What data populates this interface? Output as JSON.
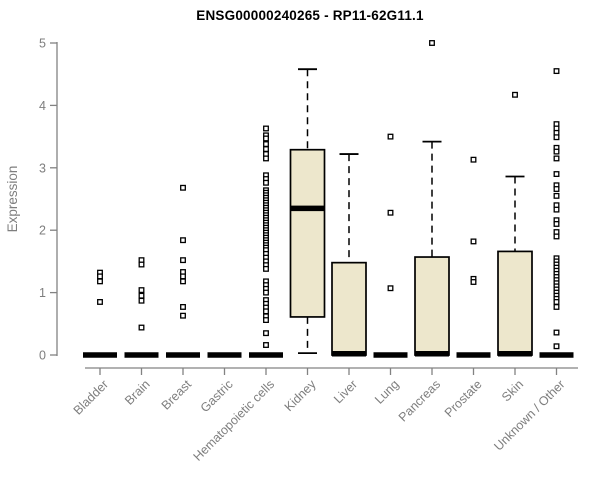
{
  "colors": {
    "background": "#FFFFFF",
    "box_fill": "#EDE7CC",
    "box_stroke": "#000000",
    "median": "#000000",
    "outlier": "#000000",
    "axis": "#828282",
    "tick_label": "#7E7E7E",
    "title": "#000000"
  },
  "chart_data": {
    "type": "boxplot",
    "title": "ENSG00000240265 - RP11-62G11.1",
    "xlabel": "",
    "ylabel": "Expression",
    "ylim": [
      0,
      5
    ],
    "yticks": [
      0,
      1,
      2,
      3,
      4,
      5
    ],
    "grid": "off",
    "legend": "none",
    "categories": [
      "Bladder",
      "Brain",
      "Breast",
      "Gastric",
      "Hematopoietic cells",
      "Kidney",
      "Liver",
      "Lung",
      "Pancreas",
      "Prostate",
      "Skin",
      "Unknown / Other"
    ],
    "boxes": [
      {
        "category": "Bladder",
        "collapsed": true,
        "median": 0,
        "q1": 0,
        "q3": 0,
        "whisker_low": 0,
        "whisker_high": 0,
        "outliers": [
          1.32,
          1.26,
          1.18,
          0.85
        ]
      },
      {
        "category": "Brain",
        "collapsed": true,
        "median": 0,
        "q1": 0,
        "q3": 0,
        "whisker_low": 0,
        "whisker_high": 0,
        "outliers": [
          1.52,
          1.45,
          1.04,
          0.95,
          0.87,
          0.44
        ]
      },
      {
        "category": "Breast",
        "collapsed": true,
        "median": 0,
        "q1": 0,
        "q3": 0,
        "whisker_low": 0,
        "whisker_high": 0,
        "outliers": [
          2.68,
          1.84,
          1.52,
          1.33,
          1.26,
          1.18,
          0.77,
          0.63
        ]
      },
      {
        "category": "Gastric",
        "collapsed": true,
        "median": 0,
        "q1": 0,
        "q3": 0,
        "whisker_low": 0,
        "whisker_high": 0,
        "outliers": []
      },
      {
        "category": "Hematopoietic cells",
        "collapsed": true,
        "median": 0,
        "q1": 0,
        "q3": 0,
        "whisker_low": 0,
        "whisker_high": 0,
        "outliers": [
          3.63,
          3.52,
          3.47,
          3.38,
          3.3,
          3.22,
          3.15,
          2.88,
          2.82,
          2.76,
          2.64,
          2.6,
          2.56,
          2.52,
          2.48,
          2.44,
          2.4,
          2.36,
          2.32,
          2.28,
          2.24,
          2.2,
          2.16,
          2.12,
          2.08,
          2.04,
          2.0,
          1.96,
          1.92,
          1.88,
          1.84,
          1.8,
          1.76,
          1.72,
          1.68,
          1.62,
          1.56,
          1.5,
          1.44,
          1.38,
          1.18,
          1.12,
          1.06,
          1.0,
          0.88,
          0.82,
          0.76,
          0.7,
          0.62,
          0.56,
          0.35,
          0.16
        ]
      },
      {
        "category": "Kidney",
        "collapsed": false,
        "median": 2.35,
        "q1": 0.61,
        "q3": 3.29,
        "whisker_low": 0.03,
        "whisker_high": 4.58,
        "outliers": []
      },
      {
        "category": "Liver",
        "collapsed": false,
        "median": 0.02,
        "q1": 0,
        "q3": 1.48,
        "whisker_low": 0,
        "whisker_high": 3.22,
        "outliers": []
      },
      {
        "category": "Lung",
        "collapsed": true,
        "median": 0,
        "q1": 0,
        "q3": 0,
        "whisker_low": 0,
        "whisker_high": 0,
        "outliers": [
          3.5,
          2.28,
          1.07
        ]
      },
      {
        "category": "Pancreas",
        "collapsed": false,
        "median": 0.02,
        "q1": 0,
        "q3": 1.57,
        "whisker_low": 0,
        "whisker_high": 3.42,
        "outliers": [
          5.0
        ]
      },
      {
        "category": "Prostate",
        "collapsed": true,
        "median": 0,
        "q1": 0,
        "q3": 0,
        "whisker_low": 0,
        "whisker_high": 0,
        "outliers": [
          3.13,
          1.82,
          1.22,
          1.17
        ]
      },
      {
        "category": "Skin",
        "collapsed": false,
        "median": 0.02,
        "q1": 0,
        "q3": 1.66,
        "whisker_low": 0,
        "whisker_high": 2.86,
        "outliers": [
          4.17
        ]
      },
      {
        "category": "Unknown / Other",
        "collapsed": true,
        "median": 0,
        "q1": 0,
        "q3": 0,
        "whisker_low": 0,
        "whisker_high": 0,
        "outliers": [
          4.55,
          3.7,
          3.63,
          3.56,
          3.49,
          3.32,
          3.26,
          3.15,
          2.9,
          2.72,
          2.66,
          2.55,
          2.4,
          2.33,
          2.16,
          2.1,
          1.97,
          1.9,
          1.55,
          1.5,
          1.45,
          1.4,
          1.35,
          1.3,
          1.25,
          1.2,
          1.15,
          1.1,
          1.05,
          1.0,
          0.95,
          0.9,
          0.85,
          0.77,
          0.36,
          0.14
        ]
      }
    ]
  }
}
